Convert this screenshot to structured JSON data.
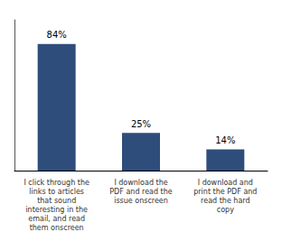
{
  "chart_data": {
    "type": "bar",
    "categories": [
      "I click through the\nlinks to articles\nthat sound\ninteresting in the\nemail, and read\nthem onscreen",
      "I download the\nPDF and read the\nissue onscreen",
      "I download and\nprint the PDF and\nread the hard\ncopy"
    ],
    "values": [
      84,
      25,
      14
    ],
    "value_labels": [
      "84%",
      "25%",
      "14%"
    ],
    "data_labels": true,
    "color": "#2E4D7B",
    "ylim": [
      0,
      100
    ],
    "tick_labels": "x",
    "grid": false
  }
}
